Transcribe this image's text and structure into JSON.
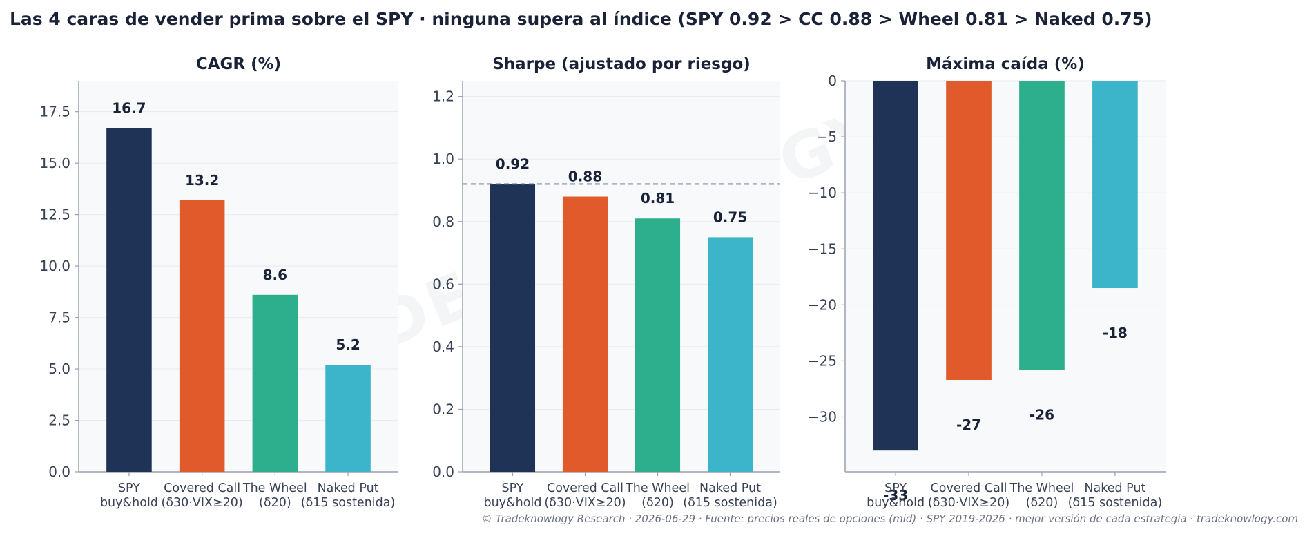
{
  "title": "Las 4 caras de vender prima sobre el SPY · ninguna supera al índice (SPY 0.92 > CC 0.88 > Wheel 0.81 > Naked 0.75)",
  "footer": "© Tradeknowlogy Research   ·   2026-06-29   ·   Fuente: precios reales de opciones (mid) · SPY 2019-2026 · mejor versión de cada estrategia   ·   tradeknowlogy.com",
  "watermark": "TRADEKNOWLOGY",
  "colors": {
    "spy": "#1e3355",
    "covered_call": "#e05a2b",
    "wheel": "#2daf8d",
    "naked_put": "#3cb4c9",
    "panel_bg": "#f8f9fb",
    "axis": "#9aa0ad",
    "grid": "#e8eaef",
    "ref_line": "#6b7385"
  },
  "chart_data": [
    {
      "type": "bar",
      "title": "CAGR (%)",
      "categories": [
        "SPY\nbuy&hold",
        "Covered Call\n(δ30·VIX≥20)",
        "The Wheel\n(δ20)",
        "Naked Put\n(δ15 sostenida)"
      ],
      "values": [
        16.7,
        13.2,
        8.6,
        5.2
      ],
      "value_labels": [
        "16.7",
        "13.2",
        "8.6",
        "5.2"
      ],
      "ylim": [
        0,
        19
      ],
      "yticks": [
        0.0,
        2.5,
        5.0,
        7.5,
        10.0,
        12.5,
        15.0,
        17.5
      ],
      "ytick_labels": [
        "0.0",
        "2.5",
        "5.0",
        "7.5",
        "10.0",
        "12.5",
        "15.0",
        "17.5"
      ],
      "xlabel": "",
      "ylabel": "",
      "grid": true
    },
    {
      "type": "bar",
      "title": "Sharpe (ajustado por riesgo)",
      "categories": [
        "SPY\nbuy&hold",
        "Covered Call\n(δ30·VIX≥20)",
        "The Wheel\n(δ20)",
        "Naked Put\n(δ15 sostenida)"
      ],
      "values": [
        0.92,
        0.88,
        0.81,
        0.75
      ],
      "value_labels": [
        "0.92",
        "0.88",
        "0.81",
        "0.75"
      ],
      "ylim": [
        0,
        1.25
      ],
      "yticks": [
        0.0,
        0.2,
        0.4,
        0.6,
        0.8,
        1.0,
        1.2
      ],
      "ytick_labels": [
        "0.0",
        "0.2",
        "0.4",
        "0.6",
        "0.8",
        "1.0",
        "1.2"
      ],
      "reference_line": 0.92,
      "xlabel": "",
      "ylabel": "",
      "grid": true
    },
    {
      "type": "bar",
      "title": "Máxima caída (%)",
      "categories": [
        "SPY\nbuy&hold",
        "Covered Call\n(δ30·VIX≥20)",
        "The Wheel\n(δ20)",
        "Naked Put\n(δ15 sostenida)"
      ],
      "values": [
        -33,
        -26.7,
        -25.8,
        -18.5
      ],
      "value_labels": [
        "-33",
        "-27",
        "-26",
        "-18"
      ],
      "ylim": [
        -34.9,
        0
      ],
      "yticks": [
        0,
        -5,
        -10,
        -15,
        -20,
        -25,
        -30
      ],
      "ytick_labels": [
        "0",
        "−5",
        "−10",
        "−15",
        "−20",
        "−25",
        "−30"
      ],
      "xlabel": "",
      "ylabel": "",
      "grid": true
    }
  ]
}
